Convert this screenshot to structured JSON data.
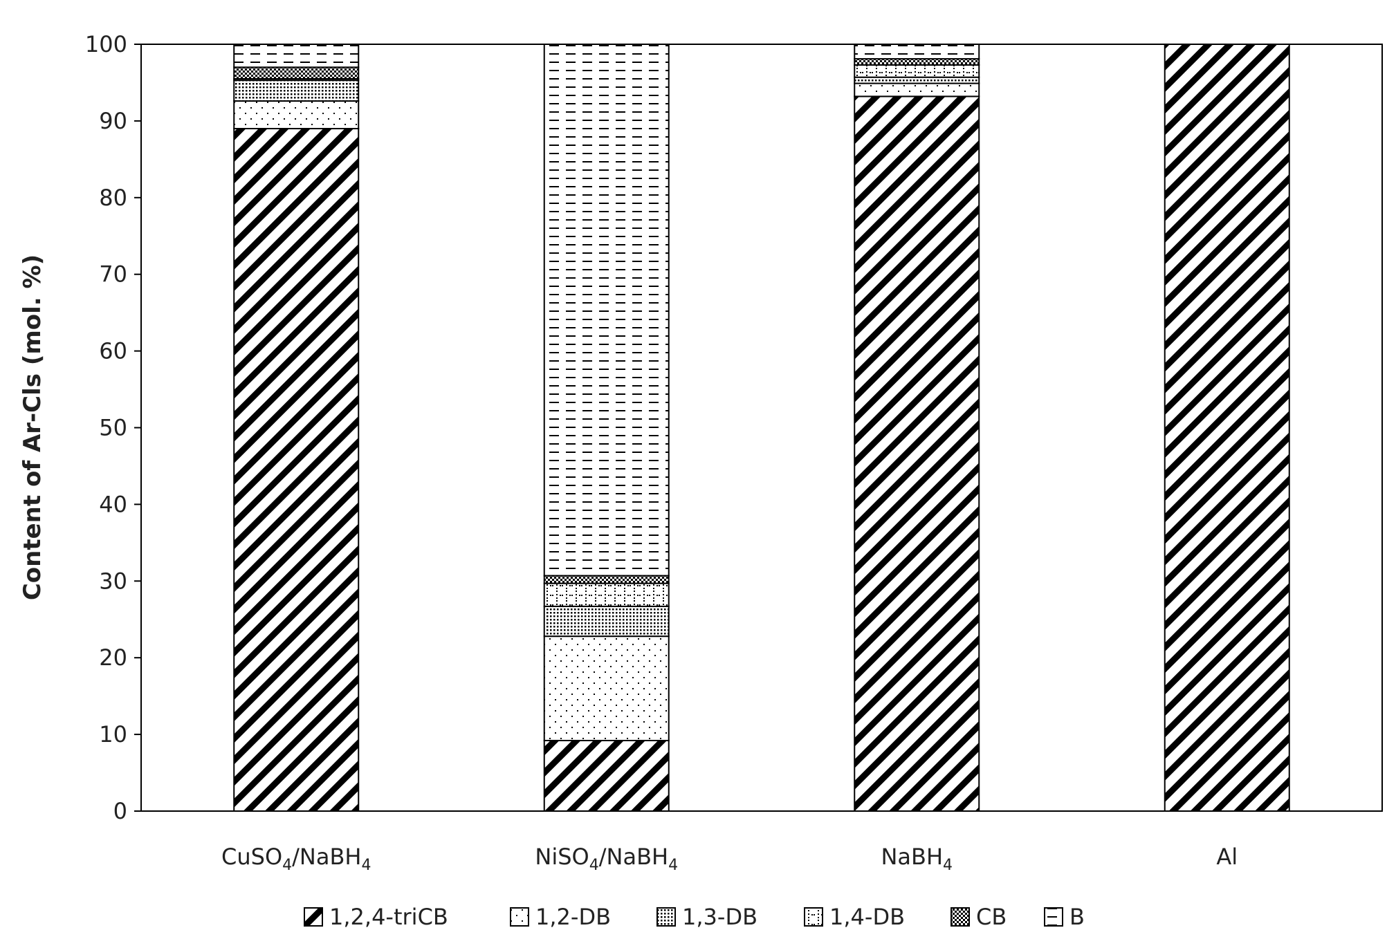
{
  "chart_data": {
    "type": "bar",
    "stacked": true,
    "title": "",
    "ylabel": "Content of Ar-Cls (mol. %)",
    "xlabel": "",
    "ylim": [
      0,
      100
    ],
    "yticks": [
      "0",
      "10",
      "20",
      "30",
      "40",
      "50",
      "60",
      "70",
      "80",
      "90",
      "100"
    ],
    "grid": false,
    "legend_position": "bottom",
    "categories": [
      {
        "base": "CuSO",
        "sub1": "4",
        "mid": "/NaBH",
        "sub2": "4"
      },
      {
        "base": "NiSO",
        "sub1": "4",
        "mid": "/NaBH",
        "sub2": "4"
      },
      {
        "base": "NaBH",
        "sub1": "4",
        "mid": "",
        "sub2": ""
      },
      {
        "base": "Al",
        "sub1": "",
        "mid": "",
        "sub2": ""
      }
    ],
    "series": [
      {
        "name": "1,2,4-triCB",
        "pattern": "diag",
        "values": [
          89.0,
          9.2,
          93.2,
          100.0
        ]
      },
      {
        "name": "1,2-DB",
        "pattern": "dots",
        "values": [
          3.6,
          13.6,
          1.7,
          0.0
        ]
      },
      {
        "name": "1,3-DB",
        "pattern": "dense",
        "values": [
          2.7,
          3.9,
          0.8,
          0.0
        ]
      },
      {
        "name": "1,4-DB",
        "pattern": "grid",
        "values": [
          0.2,
          3.0,
          1.6,
          0.0
        ]
      },
      {
        "name": "CB",
        "pattern": "check",
        "values": [
          1.5,
          1.0,
          0.8,
          0.0
        ]
      },
      {
        "name": "B",
        "pattern": "dash",
        "values": [
          3.0,
          69.3,
          1.9,
          0.0
        ]
      }
    ]
  }
}
